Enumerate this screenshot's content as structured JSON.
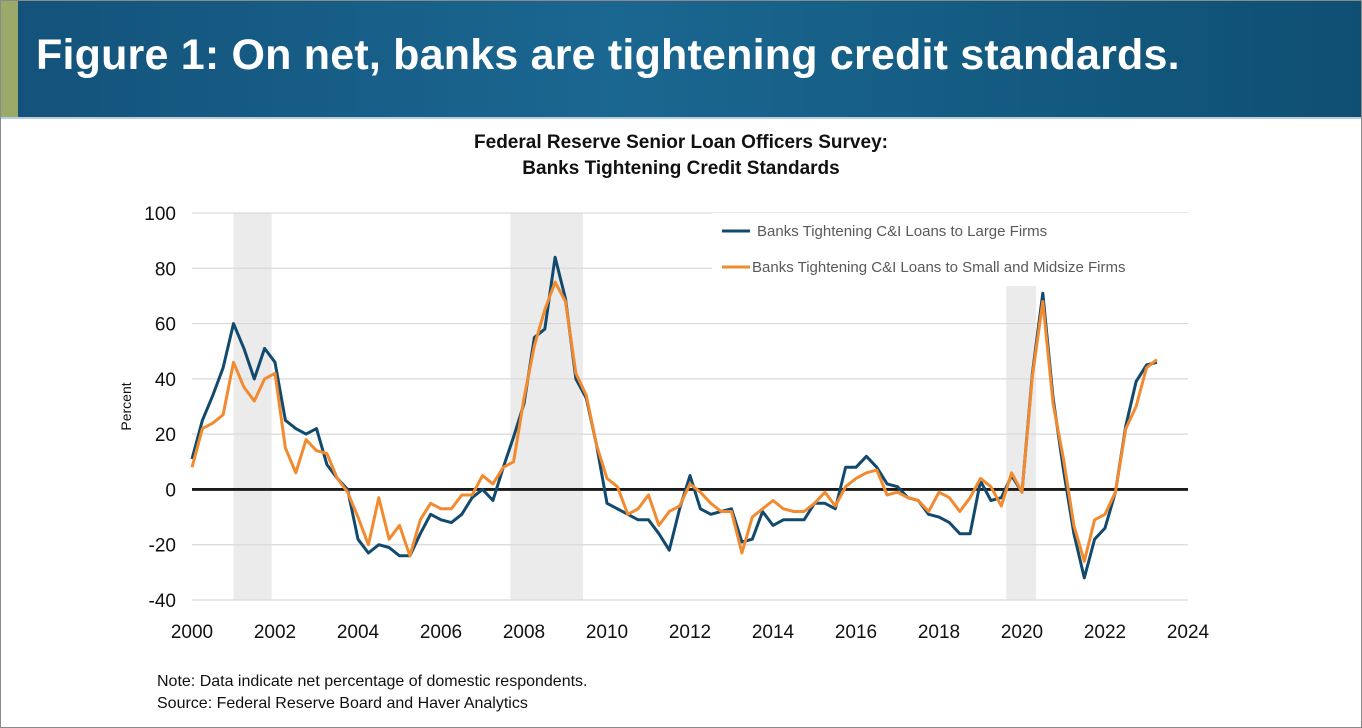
{
  "header": {
    "title": "Figure 1: On net, banks are tightening credit standards.",
    "accent_color": "#9aab69",
    "bg_color": "#17608a"
  },
  "chart_data": {
    "type": "line",
    "title_line1": "Federal Reserve Senior Loan Officers Survey:",
    "title_line2": "Banks Tightening Credit Standards",
    "xlabel": "",
    "ylabel": "Percent",
    "xlim": [
      2000,
      2024
    ],
    "ylim": [
      -40,
      100
    ],
    "xticks": [
      "2000",
      "2002",
      "2004",
      "2006",
      "2008",
      "2010",
      "2012",
      "2014",
      "2016",
      "2018",
      "2020",
      "2022",
      "2024"
    ],
    "yticks": [
      "100",
      "80",
      "60",
      "40",
      "20",
      "0",
      "-20",
      "-40"
    ],
    "grid": "horizontal",
    "legend_position": "top-right",
    "recessions": [
      [
        2001.0,
        2001.92
      ],
      [
        2007.67,
        2009.42
      ],
      [
        2019.62,
        2020.34
      ]
    ],
    "x_start": "2000Q1",
    "frequency": "quarterly",
    "series": [
      {
        "name": "Banks Tightening C&I Loans to Large Firms",
        "color": "#124a6e",
        "values": [
          11,
          25,
          34,
          44,
          60,
          51,
          40,
          51,
          46,
          25,
          22,
          20,
          22,
          9,
          4,
          0,
          -18,
          -23,
          -20,
          -21,
          -24,
          -24,
          -16,
          -9,
          -11,
          -12,
          -9,
          -3,
          0,
          -4,
          8,
          19,
          31,
          55,
          58,
          84,
          69,
          40,
          33,
          16,
          -5,
          -7,
          -9,
          -11,
          -11,
          -16,
          -22,
          -7,
          5,
          -7,
          -9,
          -8,
          -7,
          -19,
          -18,
          -8,
          -13,
          -11,
          -11,
          -11,
          -5,
          -5,
          -7,
          8,
          8,
          12,
          8,
          2,
          1,
          -3,
          -4,
          -9,
          -10,
          -12,
          -16,
          -16,
          3,
          -4,
          -3,
          5,
          -1,
          42,
          71,
          33,
          7,
          -16,
          -32,
          -18,
          -14,
          -1,
          23,
          39,
          45,
          46
        ]
      },
      {
        "name": "Banks Tightening C&I Loans to Small and Midsize Firms",
        "color": "#f28b30",
        "values": [
          8,
          22,
          24,
          27,
          46,
          37,
          32,
          40,
          42,
          15,
          6,
          18,
          14,
          13,
          4,
          -1,
          -10,
          -20,
          -3,
          -18,
          -13,
          -24,
          -11,
          -5,
          -7,
          -7,
          -2,
          -2,
          5,
          2,
          8,
          10,
          33,
          52,
          65,
          75,
          68,
          42,
          34,
          16,
          4,
          1,
          -9,
          -7,
          -2,
          -13,
          -8,
          -6,
          2,
          -1,
          -5,
          -8,
          -8,
          -23,
          -10,
          -7,
          -4,
          -7,
          -8,
          -8,
          -5,
          -1,
          -6,
          1,
          4,
          6,
          7,
          -2,
          -1,
          -3,
          -4,
          -8,
          -1,
          -3,
          -8,
          -3,
          4,
          1,
          -6,
          6,
          -1,
          41,
          68,
          31,
          11,
          -13,
          -26,
          -11,
          -9,
          -1,
          22,
          30,
          44,
          47
        ]
      }
    ]
  },
  "notes": {
    "note": "Note: Data indicate net percentage of domestic respondents.",
    "source": "Source: Federal Reserve Board and Haver Analytics"
  }
}
